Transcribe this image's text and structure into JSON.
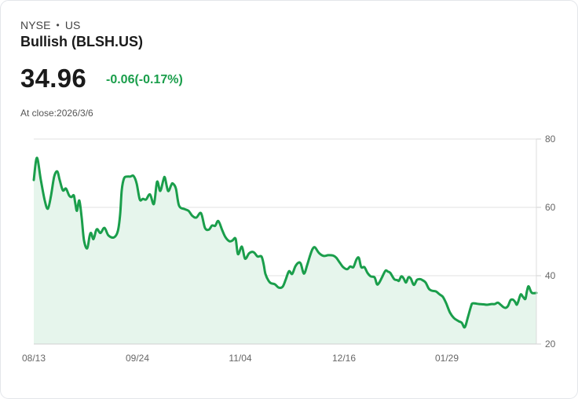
{
  "header": {
    "exchange": "NYSE",
    "separator": "•",
    "market": "US",
    "title": "Bullish (BLSH.US)",
    "price": "34.96",
    "change": "-0.06(-0.17%)",
    "close_label": "At close:2026/3/6"
  },
  "colors": {
    "line": "#1a9e4b",
    "fill": "#e6f5ec",
    "grid": "#e2e2e2",
    "text": "#1a1a1a"
  },
  "chart_data": {
    "type": "area",
    "title": "Bullish (BLSH.US)",
    "xlabel": "",
    "ylabel": "",
    "ylim": [
      20,
      80
    ],
    "yticks": [
      80,
      60,
      40,
      20
    ],
    "y_axis_position": "right",
    "grid": true,
    "xtick_labels": [
      "08/13",
      "09/24",
      "11/04",
      "12/16",
      "01/29"
    ],
    "xtick_positions": [
      43,
      175,
      306,
      438,
      569
    ],
    "last_value": 34.96,
    "points": [
      [
        43,
        68.0
      ],
      [
        47,
        74.5
      ],
      [
        52,
        68.0
      ],
      [
        57,
        62.0
      ],
      [
        61,
        59.6
      ],
      [
        65,
        63.5
      ],
      [
        69,
        69.0
      ],
      [
        73,
        70.5
      ],
      [
        76,
        68.0
      ],
      [
        80,
        65.0
      ],
      [
        84,
        65.5
      ],
      [
        88,
        63.5
      ],
      [
        91,
        63.0
      ],
      [
        94,
        63.5
      ],
      [
        96,
        61.0
      ],
      [
        98,
        59.0
      ],
      [
        101,
        62.0
      ],
      [
        104,
        57.0
      ],
      [
        107,
        50.3
      ],
      [
        111,
        48.0
      ],
      [
        114,
        51.5
      ],
      [
        116,
        52.5
      ],
      [
        119,
        50.7
      ],
      [
        122,
        53.0
      ],
      [
        124,
        53.6
      ],
      [
        128,
        52.5
      ],
      [
        133,
        54.0
      ],
      [
        138,
        51.8
      ],
      [
        145,
        51.2
      ],
      [
        150,
        53.0
      ],
      [
        153,
        58.0
      ],
      [
        155,
        65.0
      ],
      [
        158,
        68.5
      ],
      [
        162,
        69.0
      ],
      [
        166,
        69.0
      ],
      [
        170,
        69.2
      ],
      [
        174,
        67.0
      ],
      [
        178,
        62.3
      ],
      [
        182,
        62.5
      ],
      [
        186,
        62.3
      ],
      [
        191,
        63.8
      ],
      [
        196,
        61.0
      ],
      [
        200,
        67.5
      ],
      [
        204,
        64.8
      ],
      [
        208,
        68.0
      ],
      [
        210,
        68.7
      ],
      [
        214,
        64.8
      ],
      [
        218,
        66.5
      ],
      [
        220,
        67.0
      ],
      [
        224,
        65.5
      ],
      [
        228,
        60.5
      ],
      [
        235,
        59.5
      ],
      [
        240,
        59.0
      ],
      [
        245,
        57.5
      ],
      [
        250,
        57.0
      ],
      [
        256,
        58.3
      ],
      [
        261,
        54.0
      ],
      [
        266,
        53.5
      ],
      [
        270,
        54.7
      ],
      [
        274,
        54.6
      ],
      [
        278,
        56.0
      ],
      [
        283,
        53.3
      ],
      [
        287,
        51.3
      ],
      [
        292,
        50.1
      ],
      [
        296,
        50.3
      ],
      [
        300,
        50.8
      ],
      [
        303,
        46.3
      ],
      [
        308,
        48.5
      ],
      [
        312,
        45.0
      ],
      [
        317,
        46.5
      ],
      [
        321,
        47.0
      ],
      [
        324,
        46.7
      ],
      [
        328,
        45.6
      ],
      [
        333,
        45.6
      ],
      [
        336,
        43.0
      ],
      [
        338,
        40.5
      ],
      [
        342,
        38.5
      ],
      [
        345,
        37.8
      ],
      [
        350,
        37.5
      ],
      [
        355,
        36.5
      ],
      [
        360,
        36.8
      ],
      [
        364,
        39.0
      ],
      [
        368,
        41.3
      ],
      [
        372,
        40.5
      ],
      [
        376,
        42.7
      ],
      [
        380,
        43.8
      ],
      [
        383,
        43.5
      ],
      [
        387,
        40.6
      ],
      [
        391,
        43.0
      ],
      [
        395,
        46.0
      ],
      [
        398,
        47.8
      ],
      [
        401,
        48.3
      ],
      [
        406,
        46.7
      ],
      [
        412,
        45.8
      ],
      [
        418,
        46.0
      ],
      [
        424,
        45.9
      ],
      [
        428,
        45.3
      ],
      [
        433,
        43.7
      ],
      [
        437,
        42.5
      ],
      [
        442,
        41.9
      ],
      [
        446,
        42.7
      ],
      [
        450,
        42.5
      ],
      [
        454,
        44.8
      ],
      [
        457,
        45.2
      ],
      [
        460,
        42.5
      ],
      [
        464,
        42.5
      ],
      [
        468,
        40.8
      ],
      [
        472,
        39.8
      ],
      [
        477,
        39.5
      ],
      [
        480,
        37.5
      ],
      [
        483,
        38.0
      ],
      [
        487,
        39.8
      ],
      [
        491,
        41.5
      ],
      [
        494,
        41.2
      ],
      [
        497,
        40.8
      ],
      [
        502,
        39.0
      ],
      [
        506,
        38.7
      ],
      [
        508,
        38.5
      ],
      [
        511,
        39.8
      ],
      [
        514,
        39.2
      ],
      [
        517,
        38.0
      ],
      [
        520,
        39.5
      ],
      [
        523,
        39.2
      ],
      [
        527,
        37.3
      ],
      [
        531,
        38.8
      ],
      [
        535,
        39.0
      ],
      [
        538,
        38.7
      ],
      [
        542,
        38.0
      ],
      [
        546,
        36.2
      ],
      [
        550,
        35.6
      ],
      [
        555,
        35.4
      ],
      [
        560,
        34.5
      ],
      [
        564,
        33.8
      ],
      [
        568,
        32.0
      ],
      [
        573,
        29.2
      ],
      [
        578,
        27.6
      ],
      [
        584,
        26.7
      ],
      [
        588,
        26.2
      ],
      [
        591,
        24.9
      ],
      [
        593,
        25.5
      ],
      [
        596,
        28.0
      ],
      [
        600,
        31.2
      ],
      [
        602,
        31.9
      ],
      [
        610,
        31.7
      ],
      [
        616,
        31.6
      ],
      [
        620,
        31.5
      ],
      [
        626,
        31.7
      ],
      [
        630,
        31.7
      ],
      [
        634,
        32.1
      ],
      [
        638,
        31.4
      ],
      [
        641,
        30.8
      ],
      [
        644,
        30.6
      ],
      [
        647,
        31.2
      ],
      [
        650,
        32.8
      ],
      [
        653,
        33.0
      ],
      [
        656,
        32.3
      ],
      [
        658,
        31.5
      ],
      [
        660,
        32.5
      ],
      [
        663,
        34.5
      ],
      [
        666,
        33.8
      ],
      [
        669,
        33.2
      ],
      [
        671,
        35.5
      ],
      [
        673,
        36.9
      ],
      [
        676,
        35.4
      ],
      [
        678,
        34.9
      ],
      [
        683,
        34.96
      ]
    ]
  }
}
